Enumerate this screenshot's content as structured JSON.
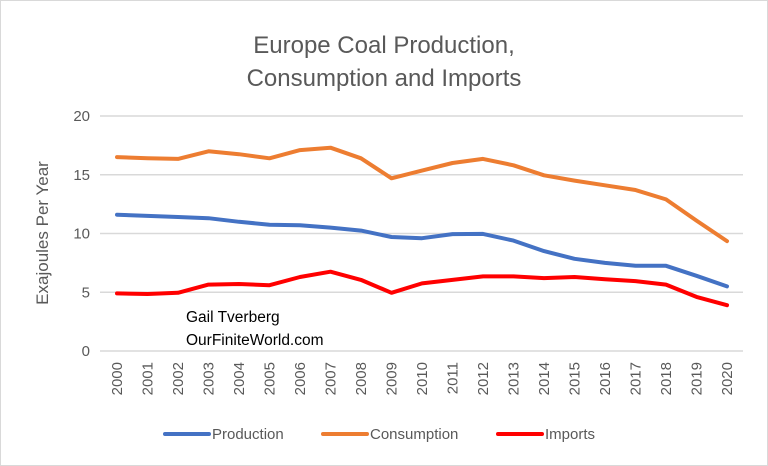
{
  "chart_data": {
    "type": "line",
    "title": [
      "Europe Coal Production,",
      "Consumption and Imports"
    ],
    "xlabel": "",
    "ylabel": "Exajoules Per Year",
    "ylim": [
      0,
      20
    ],
    "yticks": [
      0,
      5,
      10,
      15,
      20
    ],
    "ytick_labels": [
      "0",
      "5",
      "10",
      "15",
      "20"
    ],
    "grid": true,
    "legend_position": "bottom",
    "categories": [
      "2000",
      "2001",
      "2002",
      "2003",
      "2004",
      "2005",
      "2006",
      "2007",
      "2008",
      "2009",
      "2010",
      "2011",
      "2012",
      "2013",
      "2014",
      "2015",
      "2016",
      "2017",
      "2018",
      "2019",
      "2020"
    ],
    "series": [
      {
        "name": "Production",
        "color": "#4472C4",
        "values": [
          11.6,
          11.5,
          11.4,
          11.3,
          11.0,
          10.75,
          10.7,
          10.5,
          10.25,
          9.7,
          9.6,
          9.95,
          9.97,
          9.4,
          8.5,
          7.85,
          7.5,
          7.25,
          7.25,
          6.4,
          5.5
        ]
      },
      {
        "name": "Consumption",
        "color": "#ED7D31",
        "values": [
          16.5,
          16.4,
          16.35,
          17.0,
          16.75,
          16.4,
          17.1,
          17.3,
          16.4,
          14.7,
          15.35,
          16.0,
          16.35,
          15.8,
          14.95,
          14.5,
          14.1,
          13.7,
          12.9,
          11.1,
          9.35
        ]
      },
      {
        "name": "Imports",
        "color": "#FF0000",
        "values": [
          4.9,
          4.85,
          4.95,
          5.65,
          5.7,
          5.6,
          6.3,
          6.75,
          6.05,
          4.95,
          5.75,
          6.05,
          6.35,
          6.35,
          6.2,
          6.3,
          6.1,
          5.95,
          5.65,
          4.6,
          3.9
        ]
      }
    ],
    "annotations": [
      "Gail Tverberg",
      "OurFiniteWorld.com"
    ],
    "gridline_color": "#d9d9d9"
  }
}
